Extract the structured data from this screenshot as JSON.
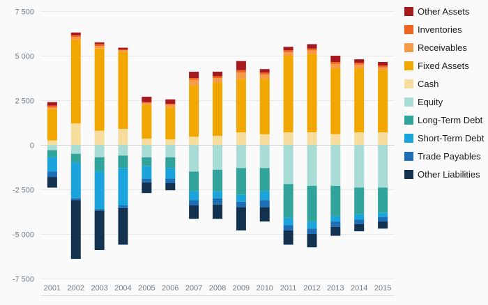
{
  "chart_data": {
    "type": "bar",
    "stacked": true,
    "title": "",
    "categories": [
      "2001",
      "2002",
      "2003",
      "2004",
      "2005",
      "2006",
      "2007",
      "2008",
      "2009",
      "2010",
      "2011",
      "2012",
      "2013",
      "2014",
      "2015"
    ],
    "ylim": [
      -7500,
      7500
    ],
    "yticks": [
      {
        "value": -7500,
        "label": "-7 500"
      },
      {
        "value": -5000,
        "label": "-5 000"
      },
      {
        "value": -2500,
        "label": "-2 500"
      },
      {
        "value": 0,
        "label": "0"
      },
      {
        "value": 2500,
        "label": "2 500"
      },
      {
        "value": 5000,
        "label": "5 000"
      },
      {
        "value": 7500,
        "label": "7 500"
      }
    ],
    "grid": true,
    "legend_position": "top-right",
    "stack_order_positive": [
      "Cash",
      "Fixed Assets",
      "Receivables",
      "Inventories",
      "Other Assets"
    ],
    "stack_order_negative": [
      "Equity",
      "Long-Term Debt",
      "Short-Term Debt",
      "Trade Payables",
      "Other Liabilities"
    ],
    "series": [
      {
        "name": "Other Assets",
        "color": "#a6191e",
        "values": [
          200,
          150,
          100,
          100,
          300,
          250,
          350,
          250,
          500,
          200,
          200,
          250,
          350,
          200,
          200
        ]
      },
      {
        "name": "Inventories",
        "color": "#f0641e",
        "values": [
          100,
          100,
          100,
          50,
          50,
          50,
          100,
          100,
          150,
          100,
          100,
          100,
          100,
          100,
          100
        ]
      },
      {
        "name": "Receivables",
        "color": "#f59a49",
        "values": [
          100,
          150,
          150,
          100,
          100,
          150,
          300,
          250,
          350,
          250,
          200,
          200,
          250,
          200,
          150
        ]
      },
      {
        "name": "Fixed Assets",
        "color": "#f1a700",
        "values": [
          1750,
          4700,
          4600,
          4300,
          1900,
          1800,
          2900,
          3000,
          3000,
          3100,
          4300,
          4400,
          3700,
          3600,
          3500
        ]
      },
      {
        "name": "Cash",
        "color": "#f6dc9d",
        "values": [
          250,
          1200,
          800,
          900,
          350,
          300,
          450,
          500,
          700,
          600,
          700,
          700,
          600,
          700,
          700
        ]
      },
      {
        "name": "Equity",
        "color": "#aadcd6",
        "values": [
          -300,
          -500,
          -700,
          -600,
          -700,
          -700,
          -1500,
          -1400,
          -1300,
          -1300,
          -2200,
          -2300,
          -2300,
          -2400,
          -2400
        ]
      },
      {
        "name": "Long-Term Debt",
        "color": "#30a39a",
        "values": [
          -400,
          -500,
          -800,
          -700,
          -500,
          -600,
          -1100,
          -1200,
          -1500,
          -1300,
          -1900,
          -2000,
          -1700,
          -1500,
          -1400
        ]
      },
      {
        "name": "Short-Term Debt",
        "color": "#1ba4dc",
        "values": [
          -800,
          -2000,
          -2100,
          -2100,
          -700,
          -600,
          -500,
          -400,
          -400,
          -500,
          -400,
          -400,
          -300,
          -300,
          -250
        ]
      },
      {
        "name": "Trade Payables",
        "color": "#1d6eb5",
        "values": [
          -300,
          -100,
          -100,
          -150,
          -200,
          -250,
          -300,
          -350,
          -300,
          -400,
          -300,
          -300,
          -300,
          -250,
          -250
        ]
      },
      {
        "name": "Other Liabilities",
        "color": "#123250",
        "values": [
          -600,
          -3300,
          -2200,
          -2050,
          -600,
          -400,
          -750,
          -800,
          -1300,
          -800,
          -800,
          -750,
          -500,
          -400,
          -400
        ]
      }
    ]
  }
}
